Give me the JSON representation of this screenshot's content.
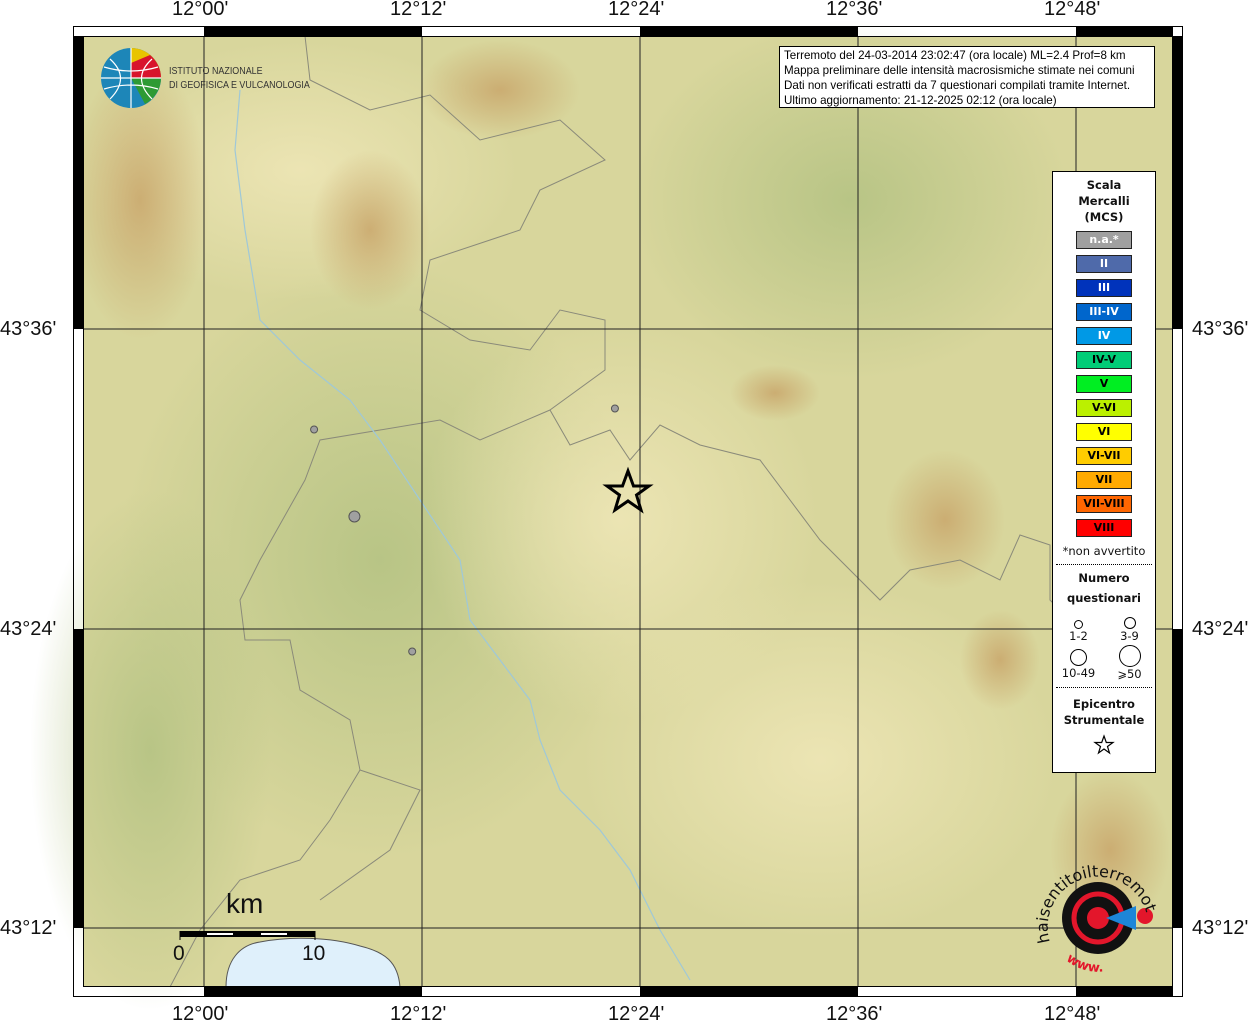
{
  "map": {
    "lon_labels": [
      "12°00'",
      "12°12'",
      "12°24'",
      "12°36'",
      "12°48'"
    ],
    "lat_labels": [
      "43°36'",
      "43°24'",
      "43°12'"
    ],
    "scale_bar": {
      "unit": "km",
      "labels": [
        "0",
        "10"
      ]
    },
    "epicenter_icon": "star-icon",
    "observation_points": [
      {
        "lon": 12.377,
        "lat": 43.547,
        "size_class": "1-2",
        "intensity": "n.a.*"
      },
      {
        "lon": 12.101,
        "lat": 43.533,
        "size_class": "1-2",
        "intensity": "n.a.*"
      },
      {
        "lon": 12.138,
        "lat": 43.475,
        "size_class": "3-9",
        "intensity": "n.a.*"
      },
      {
        "lon": 12.191,
        "lat": 43.385,
        "size_class": "1-2",
        "intensity": "n.a.*"
      }
    ],
    "colors": {
      "water": "#dff0fb",
      "border": "#8a8a7a",
      "river": "#9fc8d8",
      "point": "#a0a0a0"
    }
  },
  "infobox": {
    "lines": [
      "Terremoto del 24-03-2014 23:02:47 (ora locale) ML=2.4 Prof=8 km",
      "Mappa preliminare delle intensità macrosismiche stimate nei comuni",
      "Dati non verificati estratti da 7 questionari compilati tramite Internet.",
      "Ultimo aggiornamento: 21-12-2025 02:12 (ora locale)"
    ]
  },
  "legend": {
    "title": [
      "Scala",
      "Mercalli",
      "(MCS)"
    ],
    "scale": [
      {
        "label": "n.a.*",
        "color": "#a0a0a0",
        "text": "#ffffff"
      },
      {
        "label": "II",
        "color": "#4f6aaa",
        "text": "#ffffff"
      },
      {
        "label": "III",
        "color": "#0033bb",
        "text": "#ffffff"
      },
      {
        "label": "III-IV",
        "color": "#0066cc",
        "text": "#ffffff"
      },
      {
        "label": "IV",
        "color": "#0099e6",
        "text": "#ffffff"
      },
      {
        "label": "IV-V",
        "color": "#00cc77",
        "text": "#000000"
      },
      {
        "label": "V",
        "color": "#00ee22",
        "text": "#000000"
      },
      {
        "label": "V-VI",
        "color": "#bbf000",
        "text": "#000000"
      },
      {
        "label": "VI",
        "color": "#ffff00",
        "text": "#000000"
      },
      {
        "label": "VI-VII",
        "color": "#ffcc00",
        "text": "#000000"
      },
      {
        "label": "VII",
        "color": "#ffaa00",
        "text": "#000000"
      },
      {
        "label": "VII-VIII",
        "color": "#ff6600",
        "text": "#000000"
      },
      {
        "label": "VIII",
        "color": "#ff0000",
        "text": "#000000"
      }
    ],
    "note": "*non avvertito",
    "count_title": [
      "Numero",
      "questionari"
    ],
    "counts": [
      "1-2",
      "3-9",
      "10-49",
      "⩾50"
    ],
    "epicenter_title": [
      "Epicentro",
      "Strumentale"
    ]
  },
  "logos": {
    "ingv": [
      "ISTITUTO NAZIONALE",
      "DI GEOFISICA E VULCANOLOGIA"
    ],
    "hsi": "www.haisentitoilterremoto.it"
  }
}
